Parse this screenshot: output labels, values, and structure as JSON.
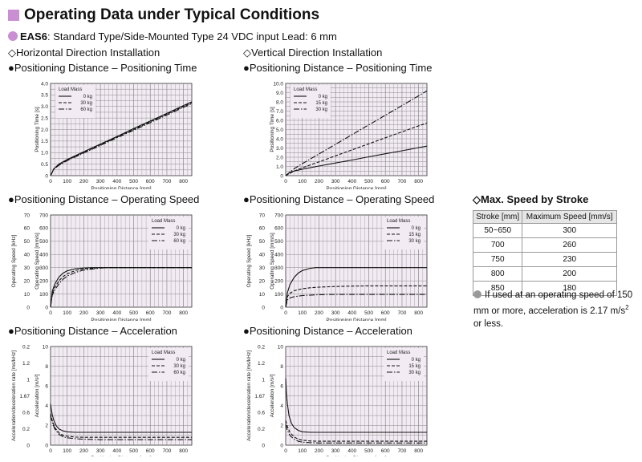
{
  "header": {
    "title": "Operating Data under Typical Conditions"
  },
  "subtitle": {
    "model": "EAS6",
    "desc": ": Standard Type/Side-Mounted Type  24 VDC input  Lead: 6 mm",
    "horizontal": "◇Horizontal Direction Installation",
    "vertical": "◇Vertical Direction Installation"
  },
  "sections": {
    "time_h": "●Positioning Distance – Positioning Time",
    "time_v": "●Positioning Distance – Positioning Time",
    "speed_h": "●Positioning Distance – Operating Speed",
    "speed_v": "●Positioning Distance – Operating Speed",
    "acc_h": "●Positioning Distance – Acceleration",
    "acc_v": "●Positioning Distance – Acceleration"
  },
  "max_speed": {
    "title": "◇Max. Speed by Stroke",
    "headers": [
      "Stroke [mm]",
      "Maximum Speed [mm/s]"
    ],
    "rows": [
      [
        "50~650",
        "300"
      ],
      [
        "700",
        "260"
      ],
      [
        "750",
        "230"
      ],
      [
        "800",
        "200"
      ],
      [
        "850",
        "180"
      ]
    ],
    "note_line1": "If used at an operating speed of 150",
    "note_line2": "mm or more, acceleration is 2.17 m/s",
    "note_sup": "2",
    "note_line3": "or less."
  },
  "colors": {
    "accent": "#c98fd2",
    "chart_bg": "#f2ebf3",
    "grid": "#8a8a8a",
    "line": "#111111"
  },
  "chart_data": [
    {
      "id": "time_h",
      "type": "line",
      "xlabel": "Positioning Distance [mm]",
      "ylabel": "Positioning Time [s]",
      "xlim": [
        0,
        850
      ],
      "ylim": [
        0,
        4
      ],
      "xticks": [
        0,
        100,
        200,
        300,
        400,
        500,
        600,
        700,
        800
      ],
      "yticks": [
        0,
        0.5,
        1.0,
        1.5,
        2.0,
        2.5,
        3.0,
        3.5,
        4.0
      ],
      "ytick_labels": [
        "0",
        "0.5",
        "1.0",
        "1.5",
        "2.0",
        "2.5",
        "3.0",
        "3.5",
        "4.0"
      ],
      "legend_title": "Load Mass",
      "series": [
        {
          "name": "0 kg",
          "dash": "",
          "x": [
            0,
            20,
            50,
            100,
            200,
            300,
            400,
            500,
            600,
            700,
            800,
            850
          ],
          "y": [
            0,
            0.3,
            0.5,
            0.7,
            1.04,
            1.37,
            1.7,
            2.04,
            2.37,
            2.7,
            3.04,
            3.2
          ]
        },
        {
          "name": "30 kg",
          "dash": "4,2",
          "x": [
            0,
            20,
            50,
            100,
            200,
            300,
            400,
            500,
            600,
            700,
            800,
            850
          ],
          "y": [
            0,
            0.3,
            0.48,
            0.68,
            1.01,
            1.34,
            1.67,
            2.0,
            2.34,
            2.67,
            3.0,
            3.16
          ]
        },
        {
          "name": "60 kg",
          "dash": "7,2,1.5,2",
          "x": [
            0,
            20,
            50,
            100,
            200,
            300,
            400,
            500,
            600,
            700,
            800,
            850
          ],
          "y": [
            0,
            0.28,
            0.45,
            0.65,
            0.98,
            1.31,
            1.64,
            1.97,
            2.3,
            2.63,
            2.96,
            3.12
          ]
        }
      ]
    },
    {
      "id": "time_v",
      "type": "line",
      "xlabel": "Positioning Distance [mm]",
      "ylabel": "Positioning Time [s]",
      "xlim": [
        0,
        850
      ],
      "ylim": [
        0,
        10
      ],
      "xticks": [
        0,
        100,
        200,
        300,
        400,
        500,
        600,
        700,
        800
      ],
      "yticks": [
        0,
        1,
        2,
        3,
        4,
        5,
        6,
        7,
        8,
        9,
        10
      ],
      "ytick_labels": [
        "0",
        "1.0",
        "2.0",
        "3.0",
        "4.0",
        "5.0",
        "6.0",
        "7.0",
        "8.0",
        "9.0",
        "10.0"
      ],
      "legend_title": "Load Mass",
      "series": [
        {
          "name": "0 kg",
          "dash": "",
          "x": [
            0,
            20,
            50,
            100,
            200,
            300,
            400,
            500,
            600,
            700,
            800,
            850
          ],
          "y": [
            0,
            0.3,
            0.5,
            0.7,
            1.04,
            1.37,
            1.7,
            2.04,
            2.37,
            2.7,
            3.04,
            3.2
          ]
        },
        {
          "name": "15 kg",
          "dash": "4,2",
          "x": [
            0,
            50,
            100,
            200,
            300,
            400,
            500,
            600,
            700,
            800,
            850
          ],
          "y": [
            0,
            0.5,
            0.85,
            1.5,
            2.15,
            2.8,
            3.45,
            4.1,
            4.75,
            5.4,
            5.7
          ]
        },
        {
          "name": "30 kg",
          "dash": "7,2,1.5,2",
          "x": [
            0,
            50,
            100,
            200,
            300,
            400,
            500,
            600,
            700,
            800,
            850
          ],
          "y": [
            0,
            0.75,
            1.3,
            2.35,
            3.4,
            4.45,
            5.5,
            6.55,
            7.6,
            8.65,
            9.2
          ]
        }
      ]
    },
    {
      "id": "speed_h",
      "type": "line",
      "xlabel": "Positioning Distance [mm]",
      "ylabel": "Operating Speed [mm/s]",
      "y2label": "Operating Speed [kHz]",
      "xlim": [
        0,
        850
      ],
      "ylim": [
        0,
        700
      ],
      "xticks": [
        0,
        100,
        200,
        300,
        400,
        500,
        600,
        700,
        800
      ],
      "yticks": [
        0,
        100,
        200,
        300,
        400,
        500,
        600,
        700
      ],
      "ytick_labels": [
        "0",
        "100",
        "200",
        "300",
        "400",
        "500",
        "600",
        "700"
      ],
      "y2_labels": [
        "0",
        "10",
        "20",
        "30",
        "40",
        "50",
        "60",
        "70"
      ],
      "legend_title": "Load Mass",
      "series": [
        {
          "name": "0 kg",
          "dash": "",
          "x": [
            0,
            10,
            25,
            50,
            75,
            100,
            150,
            200,
            250,
            850
          ],
          "y": [
            0,
            120,
            175,
            228,
            258,
            276,
            292,
            298,
            300,
            300
          ]
        },
        {
          "name": "30 kg",
          "dash": "4,2",
          "x": [
            0,
            10,
            25,
            50,
            75,
            100,
            150,
            200,
            300,
            850
          ],
          "y": [
            0,
            100,
            150,
            200,
            232,
            254,
            278,
            292,
            300,
            300
          ]
        },
        {
          "name": "60 kg",
          "dash": "7,2,1.5,2",
          "x": [
            0,
            10,
            25,
            50,
            75,
            100,
            150,
            200,
            300,
            350,
            850
          ],
          "y": [
            0,
            90,
            130,
            178,
            212,
            236,
            264,
            282,
            297,
            300,
            300
          ]
        }
      ]
    },
    {
      "id": "speed_v",
      "type": "line",
      "xlabel": "Positioning Distance [mm]",
      "ylabel": "Operating Speed [mm/s]",
      "y2label": "Operating Speed [kHz]",
      "xlim": [
        0,
        850
      ],
      "ylim": [
        0,
        700
      ],
      "xticks": [
        0,
        100,
        200,
        300,
        400,
        500,
        600,
        700,
        800
      ],
      "yticks": [
        0,
        100,
        200,
        300,
        400,
        500,
        600,
        700
      ],
      "ytick_labels": [
        "0",
        "100",
        "200",
        "300",
        "400",
        "500",
        "600",
        "700"
      ],
      "y2_labels": [
        "0",
        "10",
        "20",
        "30",
        "40",
        "50",
        "60",
        "70"
      ],
      "legend_title": "Load Mass",
      "series": [
        {
          "name": "0 kg",
          "dash": "",
          "x": [
            0,
            10,
            25,
            50,
            75,
            100,
            150,
            180,
            850
          ],
          "y": [
            0,
            110,
            170,
            225,
            258,
            278,
            296,
            300,
            300
          ]
        },
        {
          "name": "15 kg",
          "dash": "4,2",
          "x": [
            0,
            10,
            25,
            50,
            100,
            150,
            200,
            300,
            400,
            500,
            850
          ],
          "y": [
            0,
            80,
            105,
            125,
            140,
            148,
            152,
            157,
            160,
            162,
            162
          ]
        },
        {
          "name": "30 kg",
          "dash": "7,2,1.5,2",
          "x": [
            0,
            10,
            25,
            50,
            100,
            150,
            200,
            300,
            850
          ],
          "y": [
            0,
            55,
            70,
            80,
            88,
            92,
            95,
            97,
            97
          ]
        }
      ]
    },
    {
      "id": "acc_h",
      "type": "line",
      "xlabel": "Positioning Distance [mm]",
      "ylabel": "Acceleration [m/s²]",
      "y2label": "Acceleration/deceleration rate [ms/kHz]",
      "xlim": [
        0,
        850
      ],
      "ylim": [
        0,
        10
      ],
      "xticks": [
        0,
        100,
        200,
        300,
        400,
        500,
        600,
        700,
        800
      ],
      "yticks": [
        0,
        1,
        2,
        3,
        4,
        5,
        6,
        7,
        8,
        9,
        10
      ],
      "ytick_labels": [
        "0",
        "",
        "2",
        "",
        "4",
        "",
        "6",
        "",
        "8",
        "",
        "10"
      ],
      "y2_labels": [
        "0",
        "0.2",
        "0.6",
        "1.67",
        "1",
        "1.2",
        "0.2"
      ],
      "legend_title": "Load Mass",
      "series": [
        {
          "name": "0 kg",
          "dash": "",
          "x": [
            0,
            5,
            10,
            20,
            35,
            50,
            75,
            100,
            150,
            850
          ],
          "y": [
            4.2,
            3.6,
            3.1,
            2.5,
            1.95,
            1.65,
            1.45,
            1.35,
            1.3,
            1.3
          ]
        },
        {
          "name": "30 kg",
          "dash": "4,2",
          "x": [
            0,
            10,
            25,
            50,
            75,
            100,
            150,
            200,
            300,
            850
          ],
          "y": [
            3.2,
            2.5,
            1.8,
            1.25,
            1.0,
            0.9,
            0.82,
            0.8,
            0.8,
            0.8
          ]
        },
        {
          "name": "60 kg",
          "dash": "7,2,1.5,2",
          "x": [
            0,
            10,
            25,
            50,
            75,
            100,
            150,
            200,
            300,
            850
          ],
          "y": [
            3.0,
            2.3,
            1.65,
            1.1,
            0.85,
            0.75,
            0.65,
            0.6,
            0.55,
            0.55
          ]
        }
      ]
    },
    {
      "id": "acc_v",
      "type": "line",
      "xlabel": "Positioning Distance [mm]",
      "ylabel": "Acceleration [m/s²]",
      "y2label": "Acceleration/deceleration rate [ms/kHz]",
      "xlim": [
        0,
        850
      ],
      "ylim": [
        0,
        10
      ],
      "xticks": [
        0,
        100,
        200,
        300,
        400,
        500,
        600,
        700,
        800
      ],
      "yticks": [
        0,
        1,
        2,
        3,
        4,
        5,
        6,
        7,
        8,
        9,
        10
      ],
      "ytick_labels": [
        "0",
        "",
        "2",
        "",
        "4",
        "",
        "6",
        "",
        "8",
        "",
        "10"
      ],
      "y2_labels": [
        "0",
        "0.2",
        "0.6",
        "1.67",
        "1",
        "1.2",
        "0.2"
      ],
      "legend_title": "Load Mass",
      "series": [
        {
          "name": "0 kg",
          "dash": "",
          "x": [
            0,
            5,
            10,
            20,
            35,
            50,
            75,
            100,
            150,
            850
          ],
          "y": [
            6.8,
            5.2,
            4.2,
            3.0,
            2.2,
            1.8,
            1.5,
            1.35,
            1.3,
            1.3
          ]
        },
        {
          "name": "15 kg",
          "dash": "4,2",
          "x": [
            0,
            10,
            25,
            50,
            75,
            100,
            150,
            200,
            300,
            850
          ],
          "y": [
            2.5,
            1.9,
            1.3,
            0.85,
            0.6,
            0.5,
            0.42,
            0.4,
            0.4,
            0.4
          ]
        },
        {
          "name": "30 kg",
          "dash": "7,2,1.5,2",
          "x": [
            0,
            10,
            25,
            50,
            75,
            100,
            150,
            200,
            850
          ],
          "y": [
            2.1,
            1.5,
            1.0,
            0.6,
            0.4,
            0.3,
            0.25,
            0.22,
            0.22
          ]
        }
      ]
    }
  ]
}
